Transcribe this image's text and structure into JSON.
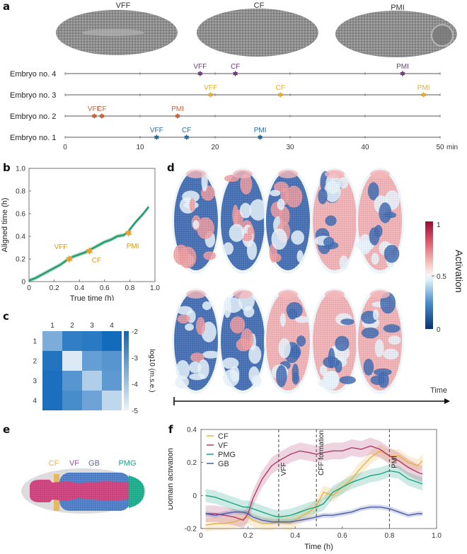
{
  "figure": {
    "panel_labels": [
      "a",
      "b",
      "c",
      "d",
      "e",
      "f"
    ]
  },
  "panel_a": {
    "embryo_titles": [
      "VFF",
      "CF",
      "PMI"
    ],
    "x_unit": "min",
    "x_ticks": [
      "0",
      "10",
      "20",
      "30",
      "40",
      "50"
    ],
    "rows": [
      {
        "label": "Embryo no. 4",
        "color": "#6b3d7a",
        "events": [
          {
            "name": "VFF",
            "t": 18.0
          },
          {
            "name": "CF",
            "t": 22.7
          },
          {
            "name": "PMI",
            "t": 45.0
          }
        ]
      },
      {
        "label": "Embryo no. 3",
        "color": "#e0b030",
        "events": [
          {
            "name": "VFF",
            "t": 19.4
          },
          {
            "name": "CF",
            "t": 28.7
          },
          {
            "name": "PMI",
            "t": 47.8
          }
        ]
      },
      {
        "label": "Embryo no. 2",
        "color": "#c8623c",
        "events": [
          {
            "name": "VFF",
            "t": 3.9
          },
          {
            "name": "CF",
            "t": 4.9
          },
          {
            "name": "PMI",
            "t": 15.0
          }
        ]
      },
      {
        "label": "Embryo no. 1",
        "color": "#2a6e9c",
        "events": [
          {
            "name": "VFF",
            "t": 12.2
          },
          {
            "name": "CF",
            "t": 16.2
          },
          {
            "name": "PMI",
            "t": 26.0
          }
        ]
      }
    ]
  },
  "chart_data": [
    {
      "id": "b",
      "type": "line",
      "title": "",
      "xlabel": "True time (h)",
      "ylabel": "Aligned time (h)",
      "xlim": [
        0,
        1.0
      ],
      "ylim": [
        0,
        1.0
      ],
      "x_ticks": [
        "0",
        "0.2",
        "0.4",
        "0.6",
        "0.8",
        "1.0"
      ],
      "y_ticks": [
        "0",
        "0.2",
        "0.4",
        "0.6",
        "0.8",
        "1.0"
      ],
      "series": [
        {
          "name": "aligned",
          "color": "#2a9d6e",
          "x": [
            0,
            0.05,
            0.1,
            0.15,
            0.2,
            0.25,
            0.3,
            0.35,
            0.4,
            0.45,
            0.5,
            0.55,
            0.6,
            0.65,
            0.7,
            0.75,
            0.78,
            0.8,
            0.85,
            0.9,
            0.95
          ],
          "y": [
            0.01,
            0.03,
            0.06,
            0.09,
            0.12,
            0.15,
            0.19,
            0.22,
            0.24,
            0.26,
            0.29,
            0.32,
            0.35,
            0.37,
            0.4,
            0.41,
            0.43,
            0.46,
            0.53,
            0.59,
            0.66
          ]
        }
      ],
      "markers": [
        {
          "name": "VFF",
          "x": 0.32,
          "y": 0.2,
          "color": "#f0a030"
        },
        {
          "name": "CF",
          "x": 0.48,
          "y": 0.27,
          "color": "#f0a030"
        },
        {
          "name": "PMI",
          "x": 0.79,
          "y": 0.43,
          "color": "#f0a030"
        }
      ]
    },
    {
      "id": "c",
      "type": "heatmap",
      "title": "",
      "x_categories": [
        "1",
        "2",
        "3",
        "4"
      ],
      "y_categories": [
        "1",
        "2",
        "3",
        "4"
      ],
      "values": [
        [
          -3.5,
          -2.5,
          -2.4,
          -2.1
        ],
        [
          -2.3,
          -4.8,
          -3.2,
          -3.0
        ],
        [
          -2.2,
          -3.0,
          -4.2,
          -3.1
        ],
        [
          -2.2,
          -2.8,
          -3.3,
          -4.4
        ]
      ],
      "colorbar_label": "log10 (m.s.e.)",
      "colorbar_ticks": [
        "-2",
        "-3",
        "-4",
        "-5"
      ],
      "vmin": -5,
      "vmax": -2
    },
    {
      "id": "f",
      "type": "line",
      "title": "",
      "xlabel": "Time (h)",
      "ylabel": "Domain activation",
      "xlim": [
        0,
        1.0
      ],
      "ylim": [
        -0.2,
        0.4
      ],
      "x_ticks": [
        "0",
        "0.2",
        "0.4",
        "0.6",
        "0.8",
        "1.0"
      ],
      "y_ticks": [
        "-0.2",
        "0",
        "0.2",
        "0.4"
      ],
      "legend": "top-left",
      "vlines": [
        {
          "x": 0.33,
          "label": "VFF"
        },
        {
          "x": 0.49,
          "label": "CFF formation"
        },
        {
          "x": 0.8,
          "label": "PMI"
        }
      ],
      "x": [
        0.02,
        0.06,
        0.1,
        0.14,
        0.18,
        0.2,
        0.22,
        0.26,
        0.3,
        0.33,
        0.38,
        0.42,
        0.46,
        0.49,
        0.52,
        0.56,
        0.6,
        0.64,
        0.68,
        0.72,
        0.76,
        0.8,
        0.84,
        0.88,
        0.92,
        0.94
      ],
      "series": [
        {
          "name": "CF",
          "color": "#e8b04a",
          "band": 0.04,
          "values": [
            -0.18,
            -0.17,
            -0.17,
            -0.16,
            -0.14,
            -0.13,
            -0.15,
            -0.17,
            -0.17,
            -0.16,
            -0.17,
            -0.13,
            -0.1,
            -0.06,
            0.02,
            0.0,
            0.05,
            0.1,
            0.17,
            0.23,
            0.27,
            0.24,
            0.24,
            0.2,
            0.18,
            0.21
          ]
        },
        {
          "name": "VF",
          "color": "#b03a6a",
          "band": 0.05,
          "values": [
            -0.11,
            -0.11,
            -0.12,
            -0.13,
            -0.15,
            -0.11,
            -0.02,
            0.1,
            0.18,
            0.21,
            0.25,
            0.27,
            0.26,
            0.25,
            0.26,
            0.27,
            0.27,
            0.29,
            0.28,
            0.3,
            0.28,
            0.24,
            0.21,
            0.17,
            0.14,
            0.13
          ]
        },
        {
          "name": "PMG",
          "color": "#1aa383",
          "band": 0.04,
          "values": [
            0.0,
            -0.01,
            -0.03,
            -0.05,
            -0.07,
            -0.07,
            -0.08,
            -0.1,
            -0.12,
            -0.13,
            -0.12,
            -0.1,
            -0.08,
            -0.07,
            -0.05,
            0.02,
            0.05,
            0.08,
            0.1,
            0.12,
            0.13,
            0.15,
            0.14,
            0.1,
            0.08,
            0.07
          ]
        },
        {
          "name": "GB",
          "color": "#4a5aa8",
          "band": 0.015,
          "values": [
            -0.11,
            -0.12,
            -0.11,
            -0.1,
            -0.1,
            -0.11,
            -0.13,
            -0.15,
            -0.16,
            -0.16,
            -0.16,
            -0.15,
            -0.14,
            -0.13,
            -0.12,
            -0.12,
            -0.11,
            -0.1,
            -0.08,
            -0.07,
            -0.07,
            -0.08,
            -0.1,
            -0.12,
            -0.11,
            -0.11
          ]
        }
      ]
    }
  ],
  "panel_d": {
    "colorbar_label": "Activation",
    "colorbar_ticks": [
      "1",
      "0.5",
      "0"
    ],
    "time_label": "Time",
    "rows": [
      {
        "activations": [
          0.2,
          0.25,
          0.3,
          0.5,
          0.75
        ]
      },
      {
        "activations": [
          0.1,
          0.2,
          0.5,
          0.65,
          0.7
        ]
      }
    ]
  },
  "panel_e": {
    "labels": [
      {
        "name": "CF",
        "color": "#e3b35a"
      },
      {
        "name": "VF",
        "color": "#8a5a8a"
      },
      {
        "name": "GB",
        "color": "#5a6a8a"
      },
      {
        "name": "PMG",
        "color": "#1aa383"
      }
    ]
  }
}
